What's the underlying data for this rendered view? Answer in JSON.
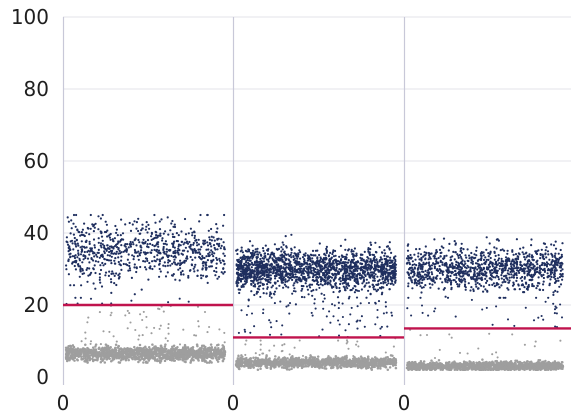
{
  "chart_data": {
    "type": "scatter",
    "title": "",
    "xlabel": "",
    "ylabel": "",
    "ylim": [
      0,
      100
    ],
    "yticks": [
      "0",
      "20",
      "40",
      "60",
      "80",
      "100"
    ],
    "grid": true,
    "legend": "none",
    "colors": {
      "positive": "#1f2f5f",
      "negative": "#9e9e9e",
      "threshold": "#c0134d",
      "divider": "#c8c8d8",
      "gridline": "#e3e3ea"
    },
    "panels": [
      {
        "x_tick_label": "0",
        "threshold": 20,
        "positive_cluster": {
          "mean": 35,
          "spread": 4.5,
          "min": 22,
          "max": 45,
          "count": 780
        },
        "negative_cluster": {
          "mean": 6.5,
          "spread": 1.0,
          "min": 4,
          "max": 9,
          "count": 1400
        },
        "scatter_between": {
          "min": 8,
          "max": 22,
          "count": 70
        }
      },
      {
        "x_tick_label": "0",
        "threshold": 11,
        "positive_cluster": {
          "mean": 30,
          "spread": 2.8,
          "min": 18,
          "max": 40,
          "count": 1700
        },
        "negative_cluster": {
          "mean": 4,
          "spread": 0.7,
          "min": 2,
          "max": 6,
          "count": 1300
        },
        "scatter_between": {
          "min": 5,
          "max": 25,
          "count": 140
        }
      },
      {
        "x_tick_label": "0",
        "threshold": 13.5,
        "positive_cluster": {
          "mean": 30,
          "spread": 3.0,
          "min": 22,
          "max": 40,
          "count": 1100
        },
        "negative_cluster": {
          "mean": 3,
          "spread": 0.6,
          "min": 2,
          "max": 5,
          "count": 1300
        },
        "scatter_between": {
          "min": 5,
          "max": 22,
          "count": 50
        }
      }
    ]
  }
}
